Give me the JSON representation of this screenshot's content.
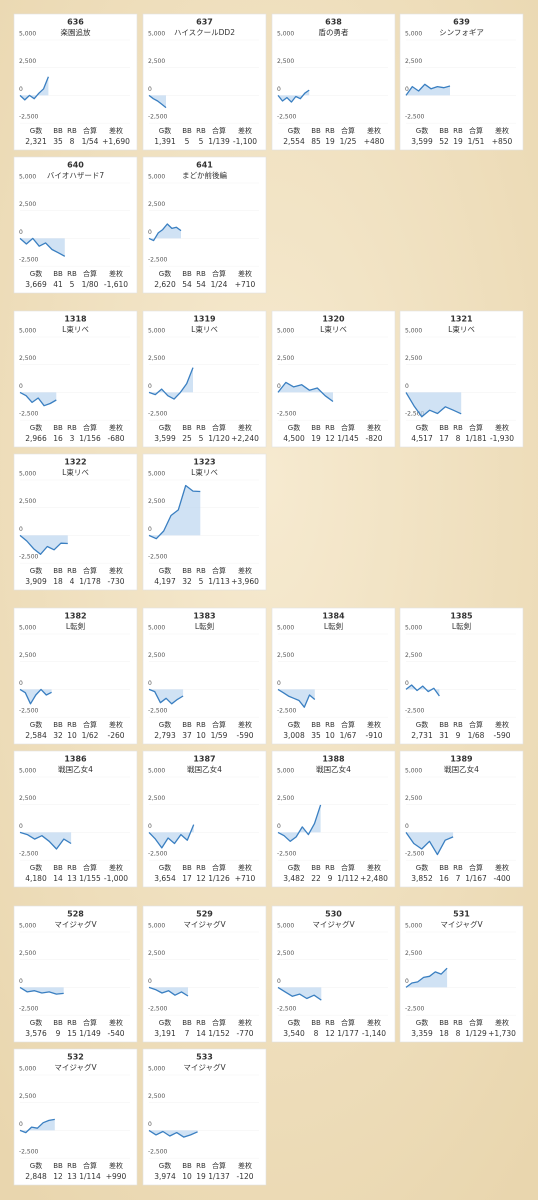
{
  "axis": {
    "ylim": [
      -3300,
      5000
    ],
    "xlim": [
      0,
      9000
    ],
    "yticks": [
      {
        "value": 5000,
        "label": "5,000"
      },
      {
        "value": 2500,
        "label": "2,500"
      },
      0,
      {
        "value": -2500,
        "label": "-2,500"
      }
    ]
  },
  "stat_headers": [
    "G数",
    "BB",
    "RB",
    "合算",
    "差枚"
  ],
  "groups": [
    {
      "cards": [
        {
          "number": "636",
          "name": "楽園追放",
          "chart": {
            "x": [
              0,
              390,
              775,
              1160,
              1550,
              1935,
              2321
            ],
            "values": [
              0,
              -400,
              0,
              -300,
              200,
              600,
              1690
            ]
          },
          "stats": [
            "2,321",
            "35",
            "8",
            "1/54",
            "+1,690"
          ]
        },
        {
          "number": "637",
          "name": "ハイスクールDD2",
          "chart": {
            "x": [
              0,
              350,
              700,
              1045,
              1391
            ],
            "values": [
              0,
              -300,
              -500,
              -800,
              -1100
            ]
          },
          "stats": [
            "1,391",
            "5",
            "5",
            "1/139",
            "-1,100"
          ]
        },
        {
          "number": "638",
          "name": "盾の勇者",
          "chart": {
            "x": [
              0,
              365,
              730,
              1095,
              1460,
              1825,
              2190,
              2554
            ],
            "values": [
              0,
              -500,
              -200,
              -600,
              -100,
              -300,
              200,
              480
            ]
          },
          "stats": [
            "2,554",
            "85",
            "19",
            "1/25",
            "+480"
          ]
        },
        {
          "number": "639",
          "name": "シンフォギア",
          "chart": {
            "x": [
              0,
              515,
              1030,
              1540,
              2055,
              2570,
              3085,
              3599
            ],
            "values": [
              0,
              800,
              400,
              1000,
              600,
              800,
              700,
              850
            ]
          },
          "stats": [
            "3,599",
            "52",
            "19",
            "1/51",
            "+850"
          ]
        },
        {
          "number": "640",
          "name": "バイオハザード7",
          "chart": {
            "x": [
              0,
              525,
              1050,
              1570,
              2095,
              2620,
              3145,
              3669
            ],
            "values": [
              0,
              -500,
              0,
              -700,
              -400,
              -1000,
              -1300,
              -1610
            ]
          },
          "stats": [
            "3,669",
            "41",
            "5",
            "1/80",
            "-1,610"
          ]
        },
        {
          "number": "641",
          "name": "まどか前後編",
          "chart": {
            "x": [
              0,
              375,
              750,
              1120,
              1495,
              1870,
              2245,
              2620
            ],
            "values": [
              0,
              -200,
              500,
              800,
              1300,
              900,
              1000,
              710
            ]
          },
          "stats": [
            "2,620",
            "54",
            "54",
            "1/24",
            "+710"
          ]
        }
      ]
    },
    {
      "cards": [
        {
          "number": "1318",
          "name": "L東リベ",
          "chart": {
            "x": [
              0,
              495,
              990,
              1485,
              1975,
              2470,
              2966
            ],
            "values": [
              0,
              -300,
              -900,
              -500,
              -1200,
              -1000,
              -680
            ]
          },
          "stats": [
            "2,966",
            "16",
            "3",
            "1/156",
            "-680"
          ]
        },
        {
          "number": "1319",
          "name": "L東リベ",
          "chart": {
            "x": [
              0,
              515,
              1030,
              1540,
              2055,
              2570,
              3085,
              3599
            ],
            "values": [
              0,
              -200,
              300,
              -300,
              -600,
              0,
              800,
              2240
            ]
          },
          "stats": [
            "3,599",
            "25",
            "5",
            "1/120",
            "+2,240"
          ]
        },
        {
          "number": "1320",
          "name": "L東リベ",
          "chart": {
            "x": [
              0,
              645,
              1285,
              1930,
              2570,
              3215,
              3855,
              4500
            ],
            "values": [
              0,
              900,
              500,
              700,
              200,
              400,
              -300,
              -820
            ]
          },
          "stats": [
            "4,500",
            "19",
            "12",
            "1/145",
            "-820"
          ]
        },
        {
          "number": "1321",
          "name": "L東リベ",
          "chart": {
            "x": [
              0,
              645,
              1290,
              1935,
              2580,
              3225,
              3870,
              4517
            ],
            "values": [
              0,
              -1200,
              -2200,
              -1600,
              -1900,
              -1300,
              -1600,
              -1930
            ]
          },
          "stats": [
            "4,517",
            "17",
            "8",
            "1/181",
            "-1,930"
          ]
        },
        {
          "number": "1322",
          "name": "L東リベ",
          "chart": {
            "x": [
              0,
              560,
              1115,
              1675,
              2235,
              2790,
              3350,
              3909
            ],
            "values": [
              0,
              -500,
              -1200,
              -1700,
              -1000,
              -1300,
              -700,
              -730
            ]
          },
          "stats": [
            "3,909",
            "18",
            "4",
            "1/178",
            "-730"
          ]
        },
        {
          "number": "1323",
          "name": "L東リベ",
          "chart": {
            "x": [
              0,
              600,
              1200,
              1800,
              2400,
              3000,
              3600,
              4197
            ],
            "values": [
              0,
              -300,
              400,
              1800,
              2300,
              4500,
              4000,
              3960
            ]
          },
          "stats": [
            "4,197",
            "32",
            "5",
            "1/113",
            "+3,960"
          ]
        }
      ]
    },
    {
      "cards": [
        {
          "number": "1382",
          "name": "L転剣",
          "chart": {
            "x": [
              0,
              430,
              860,
              1290,
              1720,
              2150,
              2584
            ],
            "values": [
              0,
              -300,
              -1300,
              -500,
              0,
              -500,
              -260
            ]
          },
          "stats": [
            "2,584",
            "32",
            "10",
            "1/62",
            "-260"
          ]
        },
        {
          "number": "1383",
          "name": "L転剣",
          "chart": {
            "x": [
              0,
              465,
              930,
              1395,
              1860,
              2325,
              2793
            ],
            "values": [
              0,
              -200,
              -1200,
              -800,
              -1300,
              -900,
              -590
            ]
          },
          "stats": [
            "2,793",
            "37",
            "10",
            "1/59",
            "-590"
          ]
        },
        {
          "number": "1384",
          "name": "L転剣",
          "chart": {
            "x": [
              0,
              430,
              860,
              1290,
              1720,
              2150,
              2580,
              3008
            ],
            "values": [
              0,
              -300,
              -600,
              -800,
              -1000,
              -1600,
              -500,
              -910
            ]
          },
          "stats": [
            "3,008",
            "35",
            "10",
            "1/67",
            "-910"
          ]
        },
        {
          "number": "1385",
          "name": "L転剣",
          "chart": {
            "x": [
              0,
              455,
              910,
              1365,
              1820,
              2275,
              2731
            ],
            "values": [
              0,
              400,
              -100,
              300,
              -200,
              100,
              -590
            ]
          },
          "stats": [
            "2,731",
            "31",
            "9",
            "1/68",
            "-590"
          ]
        },
        {
          "number": "1386",
          "name": "戦国乙女4",
          "chart": {
            "x": [
              0,
              595,
              1195,
              1790,
              2390,
              2985,
              3585,
              4180
            ],
            "values": [
              0,
              -200,
              -600,
              -300,
              -800,
              -1500,
              -600,
              -1000
            ]
          },
          "stats": [
            "4,180",
            "14",
            "13",
            "1/155",
            "-1,000"
          ]
        },
        {
          "number": "1387",
          "name": "戦国乙女4",
          "chart": {
            "x": [
              0,
              520,
              1045,
              1565,
              2090,
              2610,
              3130,
              3654
            ],
            "values": [
              0,
              -600,
              -1400,
              -500,
              -1000,
              -200,
              -700,
              710
            ]
          },
          "stats": [
            "3,654",
            "17",
            "12",
            "1/126",
            "+710"
          ]
        },
        {
          "number": "1388",
          "name": "戦国乙女4",
          "chart": {
            "x": [
              0,
              495,
              995,
              1490,
              1990,
              2485,
              2985,
              3482
            ],
            "values": [
              0,
              -300,
              -800,
              -400,
              500,
              -200,
              800,
              2480
            ]
          },
          "stats": [
            "3,482",
            "22",
            "9",
            "1/112",
            "+2,480"
          ]
        },
        {
          "number": "1389",
          "name": "戦国乙女4",
          "chart": {
            "x": [
              0,
              640,
              1285,
              1925,
              2570,
              3210,
              3852
            ],
            "values": [
              0,
              -1000,
              -1500,
              -800,
              -2000,
              -700,
              -400
            ]
          },
          "stats": [
            "3,852",
            "16",
            "7",
            "1/167",
            "-400"
          ]
        }
      ]
    },
    {
      "cards": [
        {
          "number": "528",
          "name": "マイジャグV",
          "chart": {
            "x": [
              0,
              595,
              1190,
              1790,
              2385,
              2980,
              3576
            ],
            "values": [
              0,
              -400,
              -300,
              -500,
              -400,
              -600,
              -540
            ]
          },
          "stats": [
            "3,576",
            "9",
            "15",
            "1/149",
            "-540"
          ]
        },
        {
          "number": "529",
          "name": "マイジャグV",
          "chart": {
            "x": [
              0,
              530,
              1065,
              1595,
              2125,
              2660,
              3191
            ],
            "values": [
              0,
              -200,
              -500,
              -300,
              -700,
              -400,
              -770
            ]
          },
          "stats": [
            "3,191",
            "7",
            "14",
            "1/152",
            "-770"
          ]
        },
        {
          "number": "530",
          "name": "マイジャグV",
          "chart": {
            "x": [
              0,
              590,
              1180,
              1770,
              2360,
              2950,
              3540
            ],
            "values": [
              0,
              -400,
              -800,
              -600,
              -1000,
              -700,
              -1140
            ]
          },
          "stats": [
            "3,540",
            "8",
            "12",
            "1/177",
            "-1,140"
          ]
        },
        {
          "number": "531",
          "name": "マイジャグV",
          "chart": {
            "x": [
              0,
              480,
              960,
              1440,
              1920,
              2400,
              2880,
              3359
            ],
            "values": [
              0,
              400,
              500,
              900,
              1000,
              1400,
              1200,
              1730
            ]
          },
          "stats": [
            "3,359",
            "18",
            "8",
            "1/129",
            "+1,730"
          ]
        },
        {
          "number": "532",
          "name": "マイジャグV",
          "chart": {
            "x": [
              0,
              475,
              950,
              1425,
              1900,
              2375,
              2848
            ],
            "values": [
              0,
              -200,
              300,
              200,
              700,
              900,
              990
            ]
          },
          "stats": [
            "2,848",
            "12",
            "13",
            "1/114",
            "+990"
          ]
        },
        {
          "number": "533",
          "name": "マイジャグV",
          "chart": {
            "x": [
              0,
              570,
              1135,
              1705,
              2270,
              2840,
              3405,
              3974
            ],
            "values": [
              0,
              -400,
              -100,
              -500,
              -200,
              -600,
              -400,
              -120
            ]
          },
          "stats": [
            "3,974",
            "10",
            "19",
            "1/137",
            "-120"
          ]
        }
      ]
    }
  ]
}
